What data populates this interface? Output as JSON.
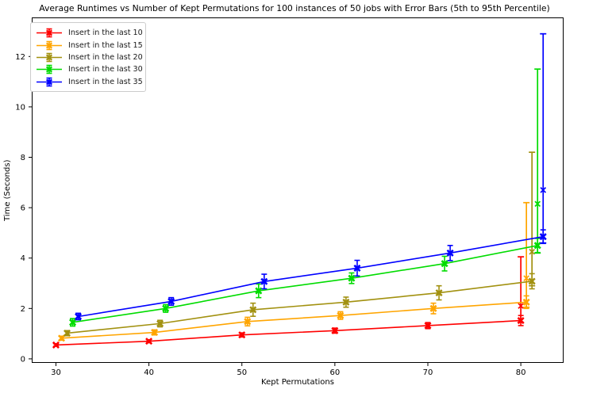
{
  "chart_data": {
    "type": "line",
    "title": "Average Runtimes vs Number of Kept Permutations for 100 instances of 50 jobs with Error Bars (5th to 95th Percentile)",
    "xlabel": "Kept Permutations",
    "ylabel": "Time (Seconds)",
    "xlim": [
      27.4,
      84.6
    ],
    "ylim": [
      -0.16,
      13.55
    ],
    "xticks": [
      30,
      40,
      50,
      60,
      70,
      80
    ],
    "yticks": [
      0,
      2,
      4,
      6,
      8,
      10,
      12
    ],
    "grid": false,
    "legend_position": "upper-left",
    "marker": "x",
    "series": [
      {
        "name": "Insert in the last 10",
        "color": "#ff0000",
        "x_offset": 0.0,
        "x": [
          30,
          40,
          50,
          60,
          70,
          80
        ],
        "y": [
          0.55,
          0.7,
          0.95,
          1.12,
          1.32,
          1.52
        ],
        "yerr": [
          0.05,
          0.06,
          0.08,
          0.1,
          0.12,
          0.2
        ],
        "final_percentile_bar": {
          "y": 2.1,
          "lo": 1.45,
          "hi": 4.05
        }
      },
      {
        "name": "Insert in the last 15",
        "color": "#ffa500",
        "x_offset": 0.6,
        "x": [
          30,
          40,
          50,
          60,
          70,
          80
        ],
        "y": [
          0.82,
          1.05,
          1.48,
          1.72,
          2.0,
          2.25
        ],
        "yerr": [
          0.08,
          0.1,
          0.17,
          0.15,
          0.21,
          0.25
        ],
        "final_percentile_bar": {
          "y": 3.2,
          "lo": 2.05,
          "hi": 6.2
        }
      },
      {
        "name": "Insert in the last 20",
        "color": "#a29110",
        "x_offset": 1.2,
        "x": [
          30,
          40,
          50,
          60,
          70,
          80
        ],
        "y": [
          1.02,
          1.4,
          1.95,
          2.25,
          2.62,
          3.08
        ],
        "yerr": [
          0.1,
          0.13,
          0.26,
          0.2,
          0.28,
          0.3
        ],
        "final_percentile_bar": {
          "y": 4.25,
          "lo": 2.9,
          "hi": 8.2
        }
      },
      {
        "name": "Insert in the last 30",
        "color": "#00dc00",
        "x_offset": 1.8,
        "x": [
          30,
          40,
          50,
          60,
          70,
          80
        ],
        "y": [
          1.45,
          2.0,
          2.7,
          3.2,
          3.78,
          4.5
        ],
        "yerr": [
          0.15,
          0.15,
          0.27,
          0.21,
          0.29,
          0.28
        ],
        "final_percentile_bar": {
          "y": 6.15,
          "lo": 4.2,
          "hi": 11.5
        }
      },
      {
        "name": "Insert in the last 35",
        "color": "#0000ff",
        "x_offset": 2.4,
        "x": [
          30,
          40,
          50,
          60,
          70,
          80
        ],
        "y": [
          1.68,
          2.28,
          3.07,
          3.6,
          4.2,
          4.85
        ],
        "yerr": [
          0.13,
          0.15,
          0.29,
          0.31,
          0.3,
          0.27
        ],
        "final_percentile_bar": {
          "y": 6.7,
          "lo": 4.6,
          "hi": 12.9
        }
      }
    ]
  }
}
